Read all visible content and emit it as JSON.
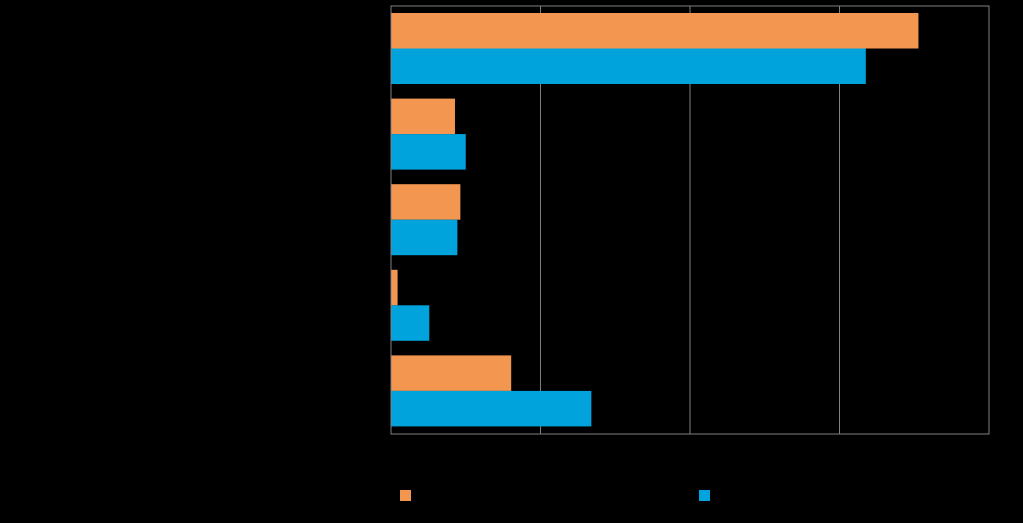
{
  "chart_data": {
    "type": "bar",
    "orientation": "horizontal",
    "categories": [
      "",
      "",
      "",
      "",
      ""
    ],
    "series": [
      {
        "color": "#F39650",
        "values": [
          88.2,
          10.7,
          11.6,
          1.1,
          20.1
        ]
      },
      {
        "color": "#00A3DC",
        "values": [
          79.4,
          12.5,
          11.1,
          6.4,
          33.5
        ]
      }
    ],
    "xlim": [
      0,
      100
    ],
    "x_gridlines": [
      25,
      50,
      75
    ],
    "grid": true,
    "legend_position": "bottom",
    "plot_background": "#000000",
    "axis_color": "#808080"
  }
}
